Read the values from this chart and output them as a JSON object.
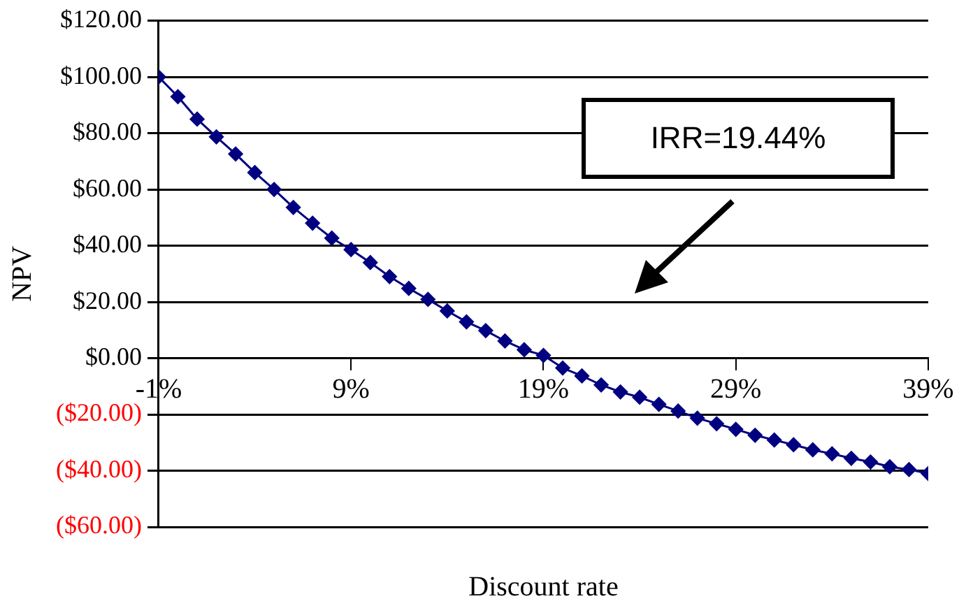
{
  "chart_data": {
    "type": "line",
    "xlabel": "Discount rate",
    "ylabel": "NPV",
    "annotations": [
      "IRR=19.44%"
    ],
    "x": [
      -1,
      0,
      1,
      2,
      3,
      4,
      5,
      6,
      7,
      8,
      9,
      10,
      11,
      12,
      13,
      14,
      15,
      16,
      17,
      18,
      19,
      20,
      21,
      22,
      23,
      24,
      25,
      26,
      27,
      28,
      29,
      30,
      31,
      32,
      33,
      34,
      35,
      36,
      37,
      38,
      39
    ],
    "series": [
      {
        "color": "#000080",
        "values": [
          100,
          93,
          85,
          78.7,
          72.6,
          66,
          60,
          53.6,
          48,
          42.7,
          38.6,
          34,
          29,
          24.8,
          20.9,
          16.8,
          12.9,
          9.8,
          6.1,
          3,
          1,
          -3.5,
          -6.3,
          -9.5,
          -12,
          -13.9,
          -16.4,
          -18.8,
          -21.3,
          -23.3,
          -25.3,
          -27.4,
          -29.1,
          -30.8,
          -32.6,
          -34,
          -35.6,
          -36.9,
          -38.6,
          -39.6,
          -41
        ]
      }
    ],
    "xlim": [
      -1,
      39
    ],
    "xticks": [
      {
        "value": -1,
        "label": "-1%"
      },
      {
        "value": 9,
        "label": "9%"
      },
      {
        "value": 19,
        "label": "19%"
      },
      {
        "value": 29,
        "label": "29%"
      },
      {
        "value": 39,
        "label": "39%"
      }
    ],
    "ylim": [
      -60,
      120
    ],
    "yticks": [
      {
        "value": -60,
        "label": "($60.00)"
      },
      {
        "value": -40,
        "label": "($40.00)"
      },
      {
        "value": -20,
        "label": "($20.00)"
      },
      {
        "value": 0,
        "label": "$0.00"
      },
      {
        "value": 20,
        "label": "$20.00"
      },
      {
        "value": 40,
        "label": "$40.00"
      },
      {
        "value": 60,
        "label": "$60.00"
      },
      {
        "value": 80,
        "label": "$80.00"
      },
      {
        "value": 100,
        "label": "$100.00"
      },
      {
        "value": 120,
        "label": "$120.00"
      }
    ],
    "grid": "y",
    "legend": false,
    "marker": "diamond",
    "line_style": "solid"
  }
}
